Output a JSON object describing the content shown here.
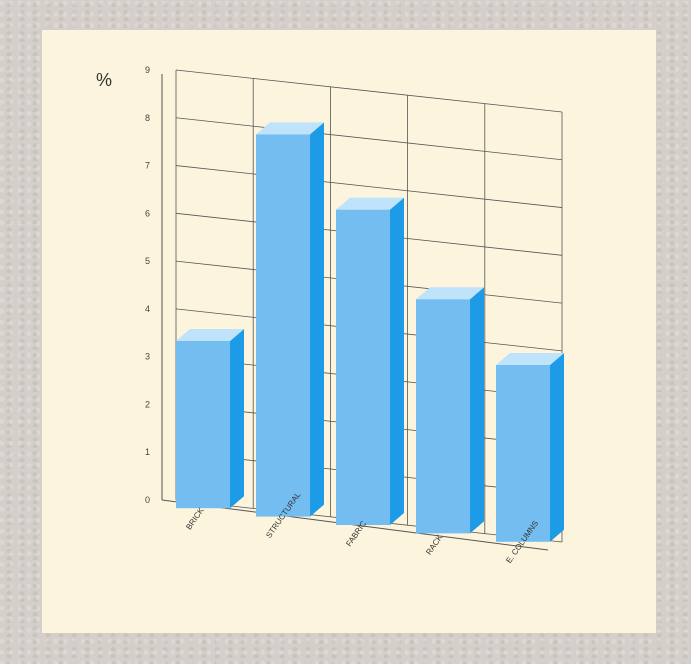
{
  "colors": {
    "frame": "#d4cfca",
    "panel": "#fcf4dc",
    "bar_front": "#74bdf0",
    "bar_side": "#1e9be6",
    "bar_top": "#bfe3fb",
    "grid": "#555555"
  },
  "chart_data": {
    "type": "bar",
    "title": "",
    "xlabel": "",
    "ylabel": "%",
    "ylim": [
      0,
      9
    ],
    "yticks": [
      "0",
      "1",
      "2",
      "3",
      "4",
      "5",
      "6",
      "7",
      "8",
      "9"
    ],
    "categories": [
      "BRICK",
      "STRUCTURAL",
      "FABRIC",
      "RACK",
      "E. COLUMNS"
    ],
    "values": [
      3.5,
      8.0,
      6.6,
      4.9,
      3.7
    ],
    "grid": true,
    "style": "3d"
  }
}
